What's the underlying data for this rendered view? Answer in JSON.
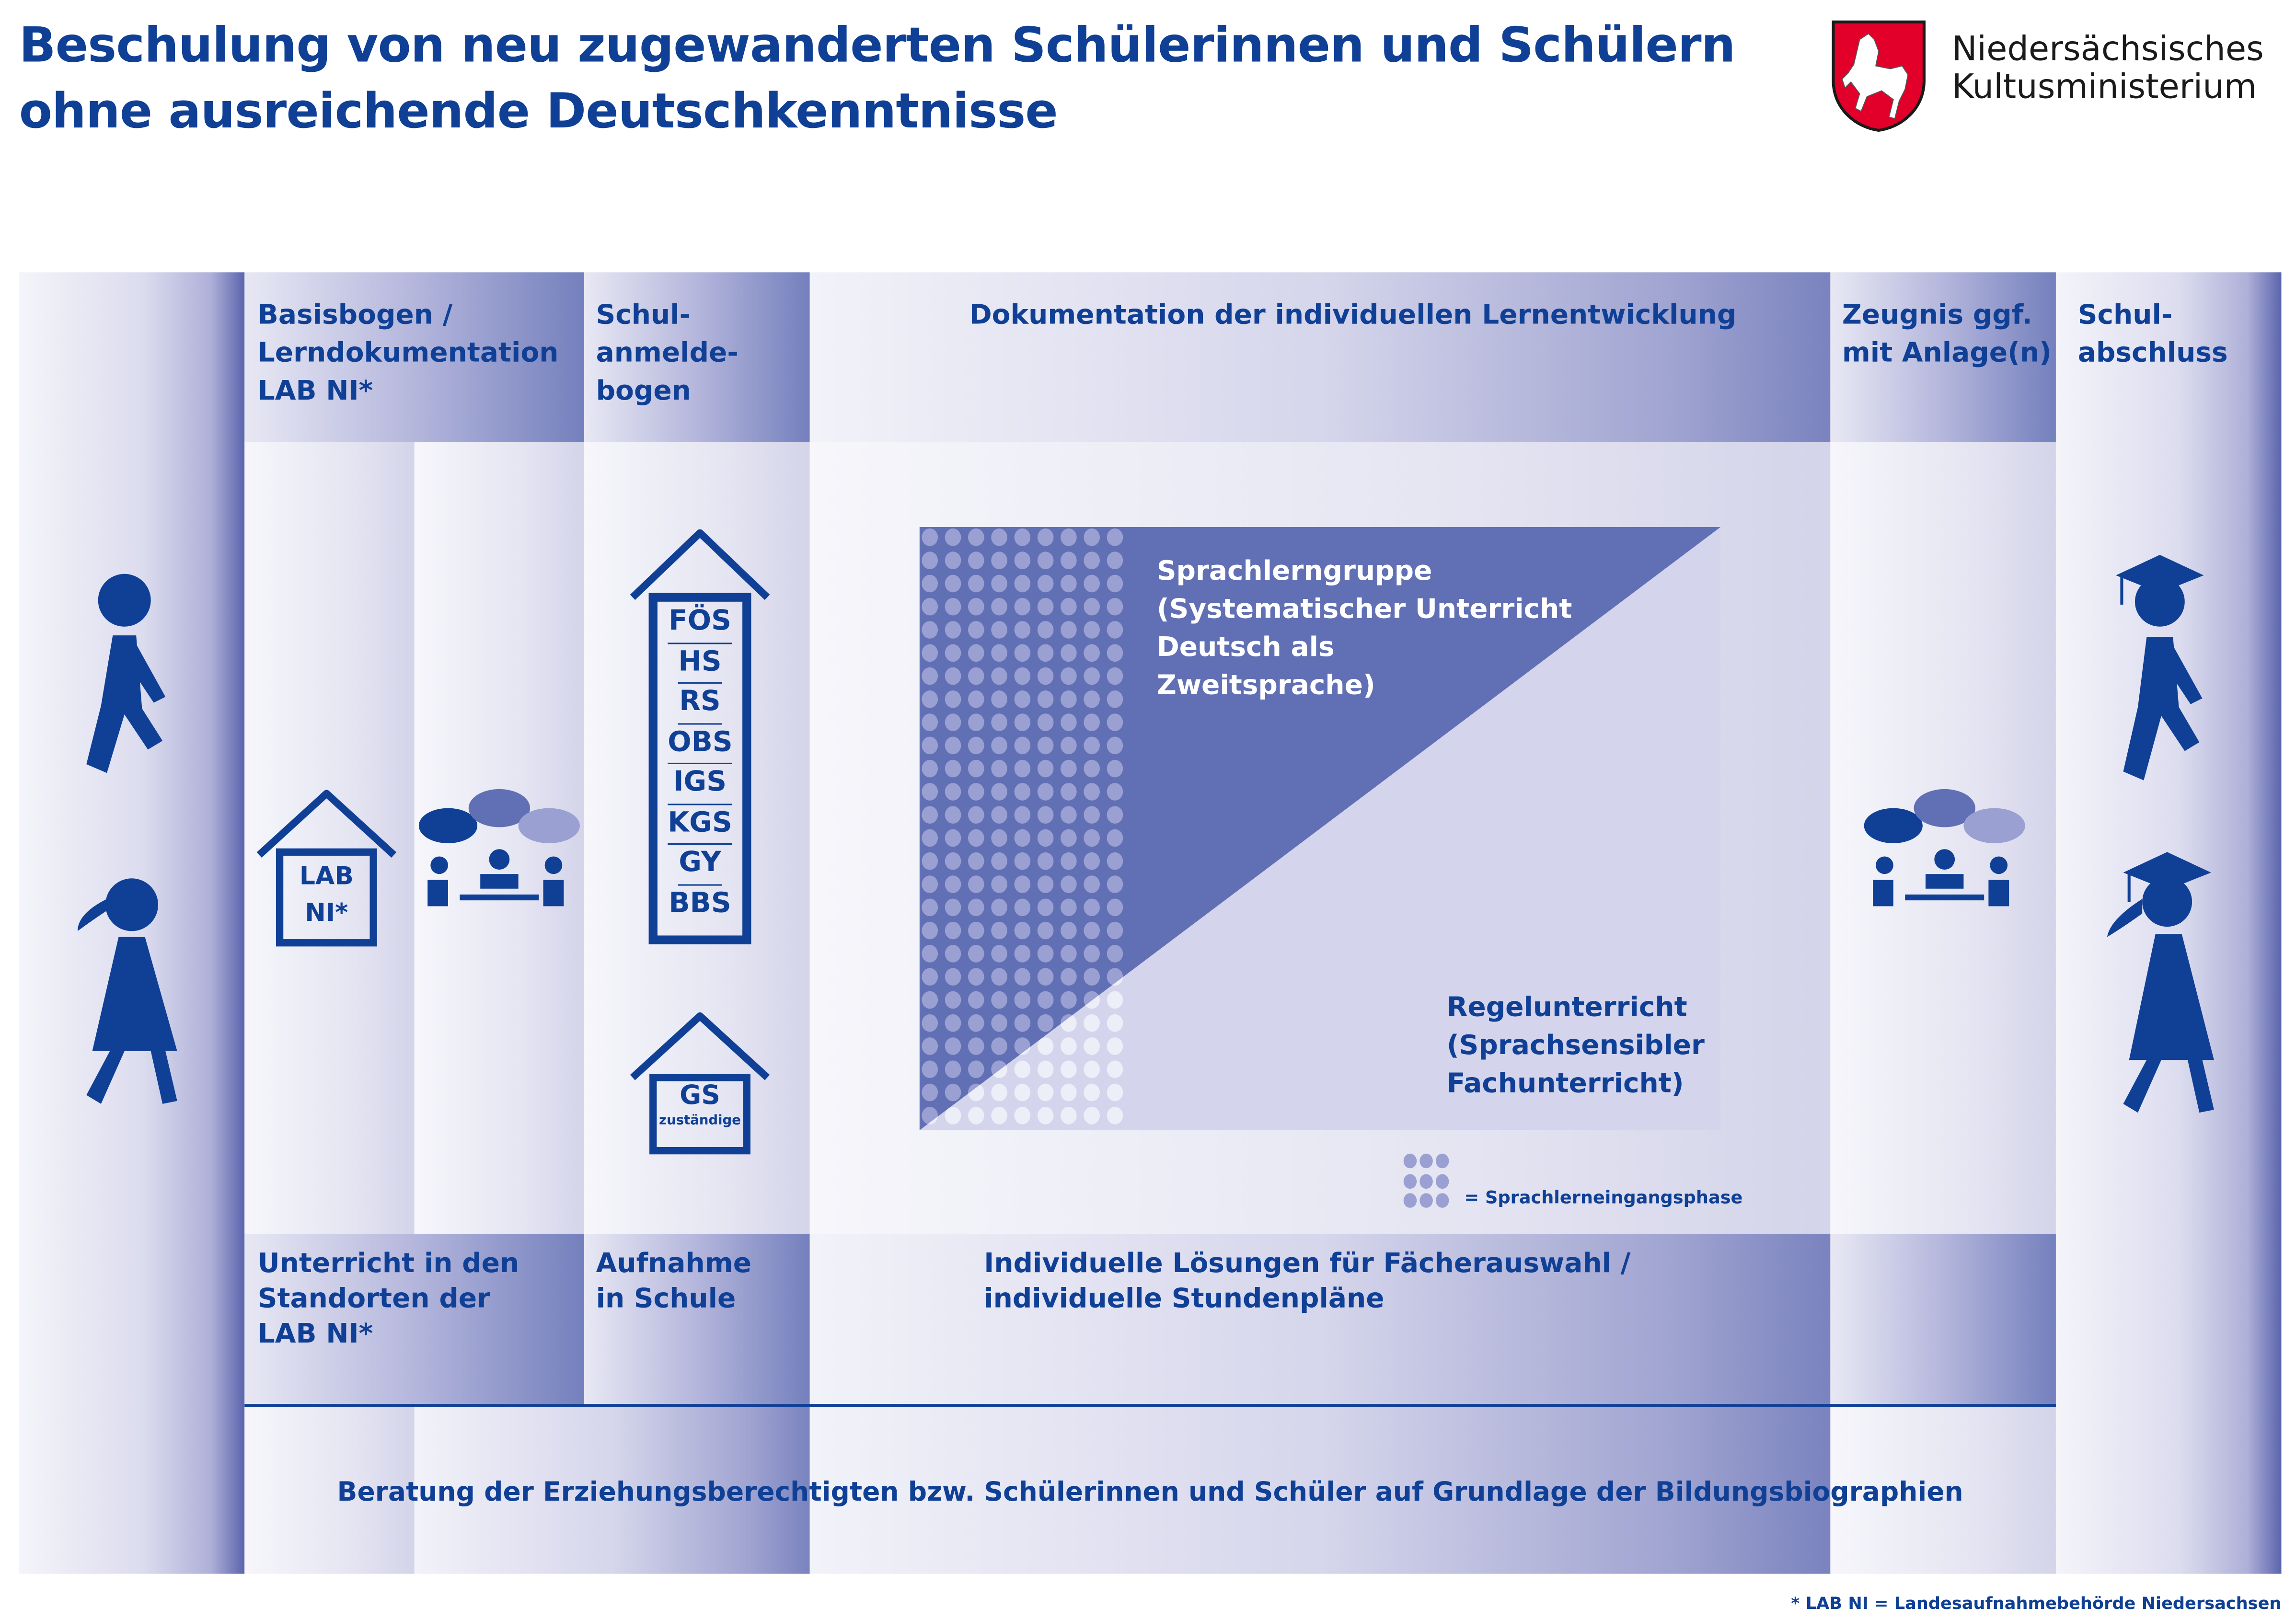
{
  "title": {
    "line1": "Beschulung von neu zugewanderten Schülerinnen und Schülern",
    "line2": "ohne ausreichende Deutschkenntnisse"
  },
  "logo": {
    "line1": "Niedersächsisches",
    "line2": "Kultusministerium",
    "emblem": "niedersachsen-horse-shield"
  },
  "header": {
    "col1": [
      "Basisbogen /",
      "Lerndokumentation",
      "LAB NI*"
    ],
    "col2": [
      "Schul-",
      "anmelde-",
      "bogen"
    ],
    "col3": [
      "Dokumentation der individuellen Lernentwicklung"
    ],
    "col4": [
      "Zeugnis ggf.",
      "mit Anlage(n)"
    ],
    "col5": [
      "Schul-",
      "abschluss"
    ]
  },
  "middle": {
    "lab_house": [
      "LAB",
      "NI*"
    ],
    "school_types": [
      "FÖS",
      "HS",
      "RS",
      "OBS",
      "IGS",
      "KGS",
      "GY",
      "BBS"
    ],
    "gs_house": {
      "main": "GS",
      "sub": "zuständige"
    },
    "sprachlerngruppe": [
      "Sprachlerngruppe",
      "(Systematischer Unterricht",
      "Deutsch als",
      "Zweitsprache)"
    ],
    "regelunterricht": [
      "Regelunterricht",
      "(Sprachsensibler",
      "Fachunterricht)"
    ],
    "legend": "= Sprachlerneingangsphase"
  },
  "lower": {
    "col1": [
      "Unterricht in den",
      "Standorten der",
      "LAB NI*"
    ],
    "col2": [
      "Aufnahme",
      "in Schule"
    ],
    "col3": [
      "Individuelle Lösungen für Fächerauswahl /",
      "individuelle Stundenpläne"
    ]
  },
  "bottom": {
    "text": "Beratung der Erziehungsberechtigten bzw. Schülerinnen und Schüler auf Grundlage der Bildungsbiographien"
  },
  "footnote": "* LAB NI = Landesaufnahmebehörde Niedersachsen",
  "colors": {
    "primary": "#0f4096",
    "triangle": "#6170b4",
    "light": "#d4d4ec",
    "logo_red": "#e2002b"
  }
}
